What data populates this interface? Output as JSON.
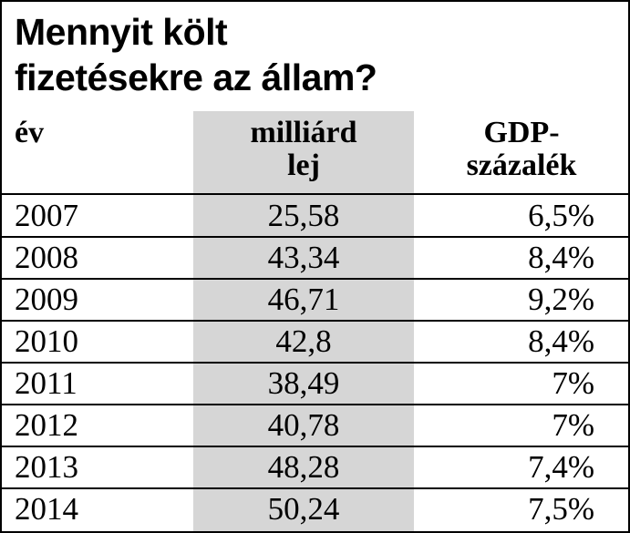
{
  "title": "Mennyit költ\nfizetésekre az állam?",
  "table": {
    "header": [
      "év",
      "milliárd\nlej",
      "GDP-\nszázalék"
    ],
    "rows": [
      [
        "2007",
        "25,58",
        "6,5%"
      ],
      [
        "2008",
        "43,34",
        "8,4%"
      ],
      [
        "2009",
        "46,71",
        "9,2%"
      ],
      [
        "2010",
        "42,8",
        "8,4%"
      ],
      [
        "2011",
        "38,49",
        "7%"
      ],
      [
        "2012",
        "40,78",
        "7%"
      ],
      [
        "2013",
        "48,28",
        "7,4%"
      ],
      [
        "2014",
        "50,24",
        "7,5%"
      ]
    ]
  }
}
